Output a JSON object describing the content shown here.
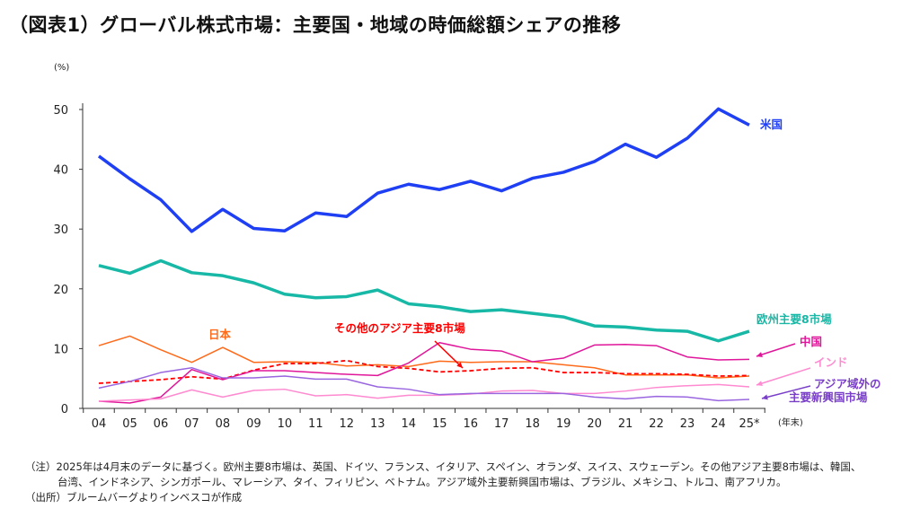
{
  "title": "（図表1）グローバル株式市場：主要国・地域の時価総額シェアの推移",
  "chart_data": {
    "type": "line",
    "ylabel": "(%)",
    "xlabel": "(年末)",
    "ylim": [
      0,
      50
    ],
    "yticks": [
      0,
      10,
      20,
      30,
      40,
      50
    ],
    "categories": [
      "04",
      "05",
      "06",
      "07",
      "08",
      "09",
      "10",
      "11",
      "12",
      "13",
      "14",
      "15",
      "16",
      "17",
      "18",
      "19",
      "20",
      "21",
      "22",
      "23",
      "24",
      "25*"
    ],
    "grid": false,
    "series": [
      {
        "name": "米国",
        "color": "#1f3ff5",
        "values": [
          42.2,
          38.4,
          34.9,
          29.6,
          33.3,
          30.1,
          29.7,
          32.7,
          32.1,
          36.0,
          37.5,
          36.6,
          38.0,
          36.4,
          38.5,
          39.5,
          41.3,
          44.2,
          42.0,
          45.2,
          50.1,
          47.4
        ]
      },
      {
        "name": "欧州主要8市場",
        "color": "#17b8a6",
        "values": [
          23.9,
          22.6,
          24.7,
          22.7,
          22.2,
          21.0,
          19.1,
          18.5,
          18.7,
          19.8,
          17.5,
          17.0,
          16.2,
          16.5,
          15.9,
          15.3,
          13.8,
          13.6,
          13.1,
          12.9,
          11.3,
          12.9
        ]
      },
      {
        "name": "日本",
        "color": "#ff6a1a",
        "values": [
          10.5,
          12.1,
          9.8,
          7.7,
          10.2,
          7.7,
          7.8,
          7.7,
          7.1,
          7.3,
          7.0,
          7.9,
          7.7,
          7.8,
          7.8,
          7.3,
          6.8,
          5.6,
          5.6,
          5.6,
          5.1,
          5.4
        ]
      },
      {
        "name": "その他のアジア主要8市場",
        "color": "#ff0000",
        "dashed": true,
        "values": [
          4.2,
          4.5,
          4.8,
          5.3,
          4.9,
          6.4,
          7.5,
          7.5,
          8.0,
          7.0,
          6.7,
          6.1,
          6.3,
          6.7,
          6.8,
          6.0,
          6.0,
          5.8,
          5.8,
          5.7,
          5.4,
          5.5
        ]
      },
      {
        "name": "中国",
        "color": "#e0169a",
        "values": [
          1.2,
          0.9,
          1.9,
          6.5,
          4.8,
          6.3,
          6.3,
          6.0,
          5.7,
          5.5,
          7.6,
          11.0,
          9.9,
          9.6,
          7.8,
          8.4,
          10.6,
          10.7,
          10.5,
          8.6,
          8.1,
          8.2
        ]
      },
      {
        "name": "インド",
        "color": "#ff8ad0",
        "values": [
          1.2,
          1.4,
          1.6,
          3.1,
          1.9,
          3.0,
          3.2,
          2.1,
          2.3,
          1.7,
          2.2,
          2.2,
          2.4,
          2.9,
          3.0,
          2.5,
          2.5,
          2.9,
          3.5,
          3.8,
          4.0,
          3.6
        ]
      },
      {
        "name": "アジア域外の主要新興国市場",
        "color": "#9966e0",
        "values": [
          3.4,
          4.5,
          6.0,
          6.8,
          5.1,
          5.1,
          5.4,
          4.9,
          4.9,
          3.6,
          3.2,
          2.3,
          2.5,
          2.5,
          2.5,
          2.5,
          1.9,
          1.6,
          2.0,
          1.9,
          1.3,
          1.5
        ]
      }
    ]
  },
  "notes": [
    "（注）2025年は4月末のデータに基づく。欧州主要8市場は、英国、ドイツ、フランス、イタリア、スペイン、オランダ、スイス、スウェーデン。その他アジア主要8市場は、韓国、",
    "台湾、インドネシア、シンガポール、マレーシア、タイ、フィリピン、ベトナム。アジア域外主要新興国市場は、ブラジル、メキシコ、トルコ、南アフリカ。",
    "（出所）ブルームバーグよりインベスコが作成"
  ]
}
